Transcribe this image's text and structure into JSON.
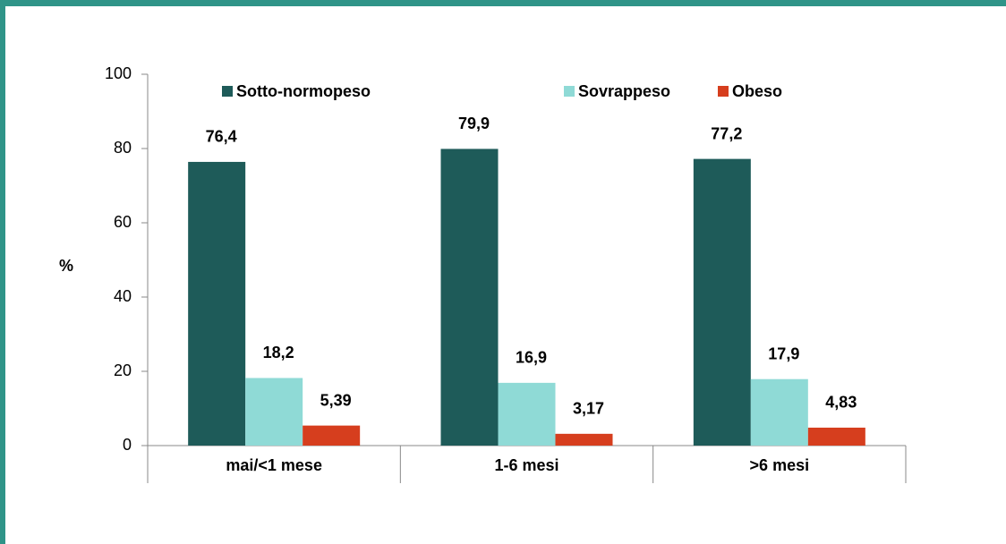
{
  "chart_data": {
    "type": "bar",
    "y_label": "%",
    "categories": [
      "mai/<1 mese",
      "1-6 mesi",
      ">6 mesi"
    ],
    "series": [
      {
        "name": "Sotto-normopeso",
        "color": "#1e5b59",
        "values": [
          76.4,
          79.9,
          77.2
        ],
        "value_labels": [
          "76,4",
          "79,9",
          "77,2"
        ]
      },
      {
        "name": "Sovrappeso",
        "color": "#8fdad6",
        "values": [
          18.2,
          16.9,
          17.9
        ],
        "value_labels": [
          "18,2",
          "16,9",
          "17,9"
        ]
      },
      {
        "name": "Obeso",
        "color": "#d63e1e",
        "values": [
          5.39,
          3.17,
          4.83
        ],
        "value_labels": [
          "5,39",
          "3,17",
          "4,83"
        ]
      }
    ],
    "ylim": [
      0,
      100
    ],
    "yticks": [
      0,
      20,
      40,
      60,
      80,
      100
    ],
    "legend": "top"
  }
}
